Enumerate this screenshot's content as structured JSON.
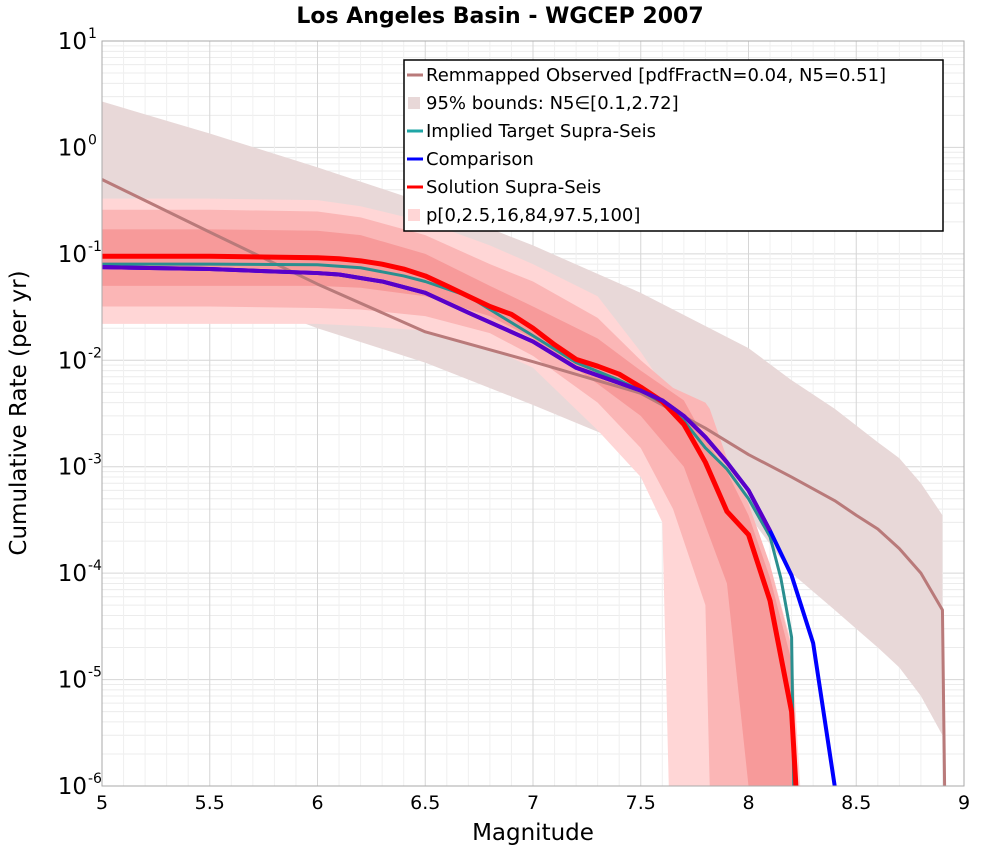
{
  "chart_data": {
    "type": "line",
    "title": "Los Angeles Basin - WGCEP 2007",
    "xlabel": "Magnitude",
    "ylabel": "Cumulative Rate (per yr)",
    "xlim": [
      5,
      9
    ],
    "ylim": [
      1e-06,
      10
    ],
    "yscale": "log",
    "grid": true,
    "legend_position": "top-right",
    "x_ticks": [
      "5",
      "5.5",
      "6",
      "6.5",
      "7",
      "7.5",
      "8",
      "8.5",
      "9"
    ],
    "y_ticks": [
      {
        "base": "10",
        "exp": "1"
      },
      {
        "base": "10",
        "exp": "0"
      },
      {
        "base": "10",
        "exp": "-1"
      },
      {
        "base": "10",
        "exp": "-2"
      },
      {
        "base": "10",
        "exp": "-3"
      },
      {
        "base": "10",
        "exp": "-4"
      },
      {
        "base": "10",
        "exp": "-5"
      },
      {
        "base": "10",
        "exp": "-6"
      }
    ],
    "legend": [
      {
        "label": "Remmapped Observed [pdfFractN=0.04, N5=0.51]",
        "kind": "line",
        "color": "#b97a7a"
      },
      {
        "label": "95% bounds: N5∈[0.1,2.72]",
        "kind": "box",
        "color": "#e8d8d8"
      },
      {
        "label": "Implied Target Supra-Seis",
        "kind": "line",
        "color": "#1fa6a6"
      },
      {
        "label": "Comparison",
        "kind": "line",
        "color": "#0000ff"
      },
      {
        "label": "Solution Supra-Seis",
        "kind": "line",
        "color": "#ff0000"
      },
      {
        "label": "p[0,2.5,16,84,97.5,100]",
        "kind": "box",
        "color": "#ffd6d6"
      }
    ],
    "bands": [
      {
        "name": "95% bounds",
        "color": "#e8d8d8",
        "x": [
          5.0,
          5.5,
          6.0,
          6.5,
          7.0,
          7.5,
          8.0,
          8.2,
          8.4,
          8.6,
          8.7,
          8.8,
          8.9
        ],
        "upper": [
          2.7,
          1.35,
          0.65,
          0.3,
          0.12,
          0.043,
          0.013,
          0.0065,
          0.0035,
          0.0017,
          0.0012,
          0.0007,
          0.00035
        ],
        "lower": [
          0.1,
          0.048,
          0.02,
          0.0095,
          0.0038,
          0.00145,
          0.00035,
          0.0001,
          4.5e-05,
          2e-05,
          1.3e-05,
          7e-06,
          3e-06
        ]
      },
      {
        "name": "p0-100",
        "color": "#ffd6d6",
        "x": [
          5.0,
          5.5,
          6.0,
          6.2,
          6.5,
          6.8,
          7.0,
          7.3,
          7.5,
          7.6,
          7.63,
          7.82,
          7.9,
          8.0,
          8.1,
          8.2,
          8.24
        ],
        "upper": [
          0.33,
          0.33,
          0.32,
          0.28,
          0.2,
          0.12,
          0.08,
          0.04,
          0.012,
          0.006,
          0.005,
          0.0025,
          0.0012,
          0.00045,
          0.00012,
          2.2e-05,
          1e-06
        ],
        "lower": [
          0.022,
          0.022,
          0.022,
          0.021,
          0.019,
          0.013,
          0.0085,
          0.0022,
          0.0008,
          0.0003,
          1e-06,
          1e-06,
          1e-06,
          1e-06,
          1e-06,
          1e-06,
          1e-06
        ]
      },
      {
        "name": "p2.5-97.5",
        "color": "#fbb6b6",
        "x": [
          5.0,
          5.5,
          6.0,
          6.2,
          6.5,
          6.8,
          7.0,
          7.3,
          7.5,
          7.65,
          7.8,
          7.82,
          7.9,
          8.0,
          8.1,
          8.2,
          8.23
        ],
        "upper": [
          0.26,
          0.26,
          0.25,
          0.22,
          0.15,
          0.08,
          0.055,
          0.025,
          0.01,
          0.0055,
          0.004,
          0.0035,
          0.0012,
          0.00045,
          0.00012,
          2e-05,
          1e-06
        ],
        "lower": [
          0.032,
          0.032,
          0.031,
          0.03,
          0.026,
          0.018,
          0.011,
          0.004,
          0.0015,
          0.0004,
          5e-05,
          1e-06,
          1e-06,
          1e-06,
          1e-06,
          1e-06,
          1e-06
        ]
      },
      {
        "name": "p16-84",
        "color": "#f79a9a",
        "x": [
          5.0,
          5.5,
          6.0,
          6.2,
          6.5,
          6.8,
          7.0,
          7.3,
          7.5,
          7.7,
          7.8,
          7.9,
          8.0,
          8.1,
          8.2,
          8.22
        ],
        "upper": [
          0.17,
          0.17,
          0.165,
          0.15,
          0.1,
          0.05,
          0.032,
          0.016,
          0.008,
          0.0042,
          0.0018,
          0.0009,
          0.00035,
          9e-05,
          1.5e-05,
          1e-06
        ],
        "lower": [
          0.05,
          0.05,
          0.05,
          0.048,
          0.04,
          0.026,
          0.016,
          0.006,
          0.003,
          0.001,
          0.00028,
          8e-05,
          1e-06,
          1e-06,
          1e-06,
          1e-06
        ]
      }
    ],
    "series": [
      {
        "name": "Remmapped Observed [pdfFractN=0.04, N5=0.51]",
        "color": "#b97a7a",
        "width": 3,
        "x": [
          5.0,
          5.5,
          6.0,
          6.5,
          7.0,
          7.5,
          7.8,
          8.0,
          8.2,
          8.4,
          8.5,
          8.6,
          8.7,
          8.8,
          8.9,
          8.91
        ],
        "y": [
          0.5,
          0.16,
          0.052,
          0.0185,
          0.0097,
          0.0049,
          0.0023,
          0.0013,
          0.0008,
          0.00048,
          0.00035,
          0.00026,
          0.00017,
          0.0001,
          4.5e-05,
          1e-06
        ]
      },
      {
        "name": "Implied Target Supra-Seis",
        "color": "#2a8f8f",
        "width": 3,
        "x": [
          5.0,
          5.5,
          6.0,
          6.2,
          6.4,
          6.5,
          6.7,
          7.0,
          7.2,
          7.4,
          7.5,
          7.6,
          7.7,
          7.8,
          7.9,
          8.0,
          8.1,
          8.15,
          8.2,
          8.21
        ],
        "y": [
          0.08,
          0.08,
          0.079,
          0.074,
          0.062,
          0.055,
          0.04,
          0.017,
          0.0095,
          0.0065,
          0.0052,
          0.004,
          0.0027,
          0.0015,
          0.00095,
          0.0005,
          0.00022,
          9e-05,
          2.5e-05,
          1e-06
        ]
      },
      {
        "name": "Comparison",
        "color": "#0000ff",
        "width": 4,
        "x": [
          5.0,
          5.5,
          6.0,
          6.1,
          6.3,
          6.5,
          6.7,
          7.0,
          7.2,
          7.5,
          7.6,
          7.7,
          7.8,
          7.9,
          8.0,
          8.1,
          8.2,
          8.3,
          8.4
        ],
        "y": [
          0.075,
          0.072,
          0.066,
          0.064,
          0.055,
          0.043,
          0.028,
          0.015,
          0.0085,
          0.0052,
          0.0042,
          0.003,
          0.0019,
          0.0011,
          0.0006,
          0.00025,
          9.5e-05,
          2.2e-05,
          1e-06
        ]
      },
      {
        "name": "Solution Supra-Seis",
        "color": "#ff0000",
        "width": 5,
        "x": [
          5.0,
          5.5,
          6.0,
          6.1,
          6.2,
          6.3,
          6.4,
          6.5,
          6.6,
          6.7,
          6.8,
          6.9,
          7.0,
          7.1,
          7.2,
          7.3,
          7.4,
          7.5,
          7.6,
          7.7,
          7.8,
          7.9,
          8.0,
          8.1,
          8.2,
          8.22
        ],
        "y": [
          0.095,
          0.095,
          0.092,
          0.09,
          0.086,
          0.08,
          0.072,
          0.062,
          0.05,
          0.04,
          0.032,
          0.027,
          0.02,
          0.014,
          0.0102,
          0.0088,
          0.0074,
          0.0056,
          0.0041,
          0.0025,
          0.0011,
          0.00038,
          0.00023,
          5.5e-05,
          5e-06,
          1e-06
        ]
      },
      {
        "name": "Comparison overlay",
        "color": "#5a00c8",
        "width": 4,
        "x": [
          5.0,
          5.5,
          6.0,
          6.1,
          6.3,
          6.5,
          6.7,
          7.0,
          7.2,
          7.5,
          7.6,
          7.7,
          7.8,
          7.9,
          8.0,
          8.1
        ],
        "y": [
          0.075,
          0.072,
          0.066,
          0.064,
          0.055,
          0.043,
          0.028,
          0.015,
          0.0085,
          0.0052,
          0.0042,
          0.003,
          0.0019,
          0.0011,
          0.0006,
          0.00025
        ]
      }
    ]
  }
}
